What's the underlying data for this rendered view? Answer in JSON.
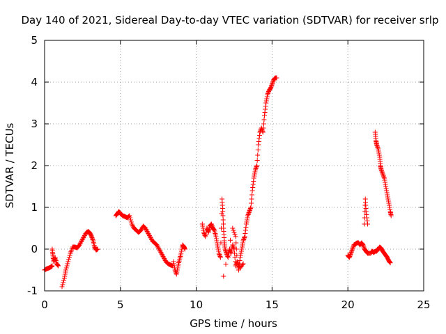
{
  "chart_data": {
    "type": "scatter",
    "title": "Day 140 of 2021, Sidereal Day-to-day VTEC variation (SDTVAR) for receiver srlp",
    "xlabel": "GPS time / hours",
    "ylabel": "SDTVAR / TECUs",
    "xlim": [
      0,
      25
    ],
    "ylim": [
      -1,
      5
    ],
    "xticks": [
      0,
      5,
      10,
      15,
      20,
      25
    ],
    "yticks": [
      -1,
      0,
      1,
      2,
      3,
      4,
      5
    ],
    "grid": true,
    "marker": "+",
    "series": [
      {
        "name": "SDTVAR",
        "color": "#ff0000",
        "segments": [
          [
            [
              0.0,
              -0.5
            ],
            [
              0.15,
              -0.47
            ],
            [
              0.3,
              -0.45
            ],
            [
              0.45,
              -0.42
            ],
            [
              0.5,
              -0.4
            ]
          ],
          [
            [
              0.5,
              0.0
            ],
            [
              0.55,
              -0.15
            ],
            [
              0.6,
              -0.3
            ],
            [
              0.7,
              -0.2
            ],
            [
              0.8,
              -0.35
            ],
            [
              0.9,
              -0.4
            ]
          ],
          [
            [
              1.15,
              -0.9
            ],
            [
              1.3,
              -0.7
            ],
            [
              1.4,
              -0.5
            ],
            [
              1.55,
              -0.3
            ],
            [
              1.7,
              -0.1
            ],
            [
              1.85,
              0.05
            ],
            [
              2.0,
              0.05
            ],
            [
              2.15,
              0.03
            ],
            [
              2.3,
              0.1
            ],
            [
              2.45,
              0.2
            ],
            [
              2.6,
              0.3
            ],
            [
              2.75,
              0.4
            ],
            [
              2.9,
              0.42
            ],
            [
              3.0,
              0.38
            ],
            [
              3.1,
              0.3
            ],
            [
              3.2,
              0.2
            ],
            [
              3.3,
              0.05
            ],
            [
              3.4,
              -0.02
            ],
            [
              3.5,
              0.0
            ]
          ],
          [
            [
              4.7,
              0.8
            ],
            [
              4.8,
              0.85
            ],
            [
              4.9,
              0.9
            ],
            [
              5.0,
              0.85
            ],
            [
              5.15,
              0.8
            ],
            [
              5.3,
              0.78
            ],
            [
              5.45,
              0.75
            ],
            [
              5.6,
              0.8
            ],
            [
              5.75,
              0.6
            ],
            [
              5.9,
              0.5
            ],
            [
              6.05,
              0.45
            ],
            [
              6.2,
              0.4
            ],
            [
              6.35,
              0.45
            ],
            [
              6.5,
              0.55
            ],
            [
              6.65,
              0.5
            ],
            [
              6.8,
              0.4
            ],
            [
              6.95,
              0.3
            ],
            [
              7.1,
              0.2
            ],
            [
              7.25,
              0.15
            ],
            [
              7.4,
              0.1
            ],
            [
              7.55,
              0.0
            ],
            [
              7.7,
              -0.1
            ],
            [
              7.85,
              -0.2
            ],
            [
              8.0,
              -0.3
            ],
            [
              8.15,
              -0.35
            ],
            [
              8.3,
              -0.38
            ],
            [
              8.45,
              -0.4
            ]
          ],
          [
            [
              8.5,
              -0.3
            ],
            [
              8.6,
              -0.5
            ],
            [
              8.7,
              -0.6
            ],
            [
              8.8,
              -0.4
            ],
            [
              8.9,
              -0.25
            ],
            [
              9.0,
              -0.1
            ],
            [
              9.1,
              0.1
            ],
            [
              9.2,
              0.05
            ],
            [
              9.25,
              0.0
            ]
          ],
          [
            [
              10.4,
              0.6
            ],
            [
              10.5,
              0.4
            ],
            [
              10.6,
              0.3
            ],
            [
              10.7,
              0.5
            ],
            [
              10.8,
              0.4
            ],
            [
              10.9,
              0.55
            ],
            [
              11.0,
              0.6
            ],
            [
              11.1,
              0.5
            ],
            [
              11.2,
              0.45
            ],
            [
              11.3,
              0.3
            ],
            [
              11.4,
              0.1
            ],
            [
              11.5,
              -0.1
            ],
            [
              11.6,
              -0.2
            ],
            [
              11.7,
              1.2
            ],
            [
              11.75,
              0.9
            ],
            [
              11.8,
              0.5
            ],
            [
              11.85,
              0.2
            ],
            [
              11.9,
              0.0
            ],
            [
              12.0,
              -0.1
            ],
            [
              12.1,
              -0.2
            ],
            [
              12.2,
              0.0
            ],
            [
              12.3,
              -0.1
            ],
            [
              12.4,
              0.1
            ],
            [
              12.5,
              0.0
            ],
            [
              12.6,
              -0.4
            ],
            [
              12.7,
              -0.3
            ],
            [
              12.8,
              -0.5
            ],
            [
              12.9,
              -0.2
            ],
            [
              13.0,
              0.0
            ],
            [
              13.1,
              0.2
            ],
            [
              13.2,
              0.3
            ],
            [
              13.3,
              0.6
            ],
            [
              13.4,
              0.8
            ],
            [
              13.5,
              0.9
            ],
            [
              13.6,
              1.0
            ],
            [
              13.7,
              1.4
            ],
            [
              13.8,
              1.7
            ],
            [
              13.9,
              1.9
            ],
            [
              14.0,
              2.0
            ],
            [
              14.1,
              2.5
            ],
            [
              14.2,
              2.8
            ],
            [
              14.3,
              2.9
            ],
            [
              14.4,
              2.8
            ],
            [
              14.5,
              3.2
            ],
            [
              14.6,
              3.5
            ],
            [
              14.7,
              3.7
            ],
            [
              14.8,
              3.8
            ],
            [
              14.9,
              3.85
            ],
            [
              15.0,
              3.95
            ],
            [
              15.1,
              4.05
            ],
            [
              15.2,
              4.1
            ],
            [
              15.3,
              4.1
            ]
          ],
          [
            [
              11.8,
              -0.65
            ],
            [
              12.4,
              0.5
            ],
            [
              12.6,
              0.3
            ],
            [
              12.7,
              -0.3
            ],
            [
              12.9,
              -0.45
            ],
            [
              13.1,
              -0.35
            ]
          ],
          [
            [
              20.0,
              -0.15
            ],
            [
              20.1,
              -0.2
            ],
            [
              20.2,
              -0.1
            ],
            [
              20.3,
              0.0
            ],
            [
              20.4,
              0.1
            ],
            [
              20.5,
              0.12
            ],
            [
              20.6,
              0.15
            ],
            [
              20.7,
              0.15
            ],
            [
              20.8,
              0.1
            ],
            [
              20.9,
              0.15
            ],
            [
              21.0,
              0.1
            ],
            [
              21.1,
              0.0
            ],
            [
              21.2,
              -0.05
            ],
            [
              21.3,
              -0.1
            ],
            [
              21.5,
              -0.1
            ],
            [
              21.6,
              -0.05
            ],
            [
              21.7,
              -0.08
            ],
            [
              21.8,
              -0.05
            ],
            [
              21.9,
              -0.05
            ],
            [
              22.0,
              0.0
            ],
            [
              22.1,
              0.05
            ],
            [
              22.2,
              0.02
            ],
            [
              22.3,
              -0.05
            ],
            [
              22.4,
              -0.1
            ],
            [
              22.5,
              -0.15
            ],
            [
              22.6,
              -0.2
            ],
            [
              22.7,
              -0.28
            ],
            [
              22.8,
              -0.33
            ]
          ],
          [
            [
              21.1,
              0.6
            ],
            [
              21.15,
              1.2
            ],
            [
              21.2,
              0.9
            ],
            [
              21.3,
              0.6
            ]
          ],
          [
            [
              21.8,
              2.8
            ],
            [
              21.85,
              2.6
            ],
            [
              21.9,
              2.5
            ],
            [
              22.0,
              2.4
            ],
            [
              22.1,
              2.2
            ],
            [
              22.15,
              2.0
            ],
            [
              22.2,
              1.9
            ],
            [
              22.3,
              1.8
            ],
            [
              22.4,
              1.7
            ],
            [
              22.5,
              1.5
            ],
            [
              22.6,
              1.3
            ],
            [
              22.7,
              1.1
            ],
            [
              22.8,
              0.9
            ],
            [
              22.85,
              0.8
            ]
          ]
        ]
      }
    ]
  }
}
